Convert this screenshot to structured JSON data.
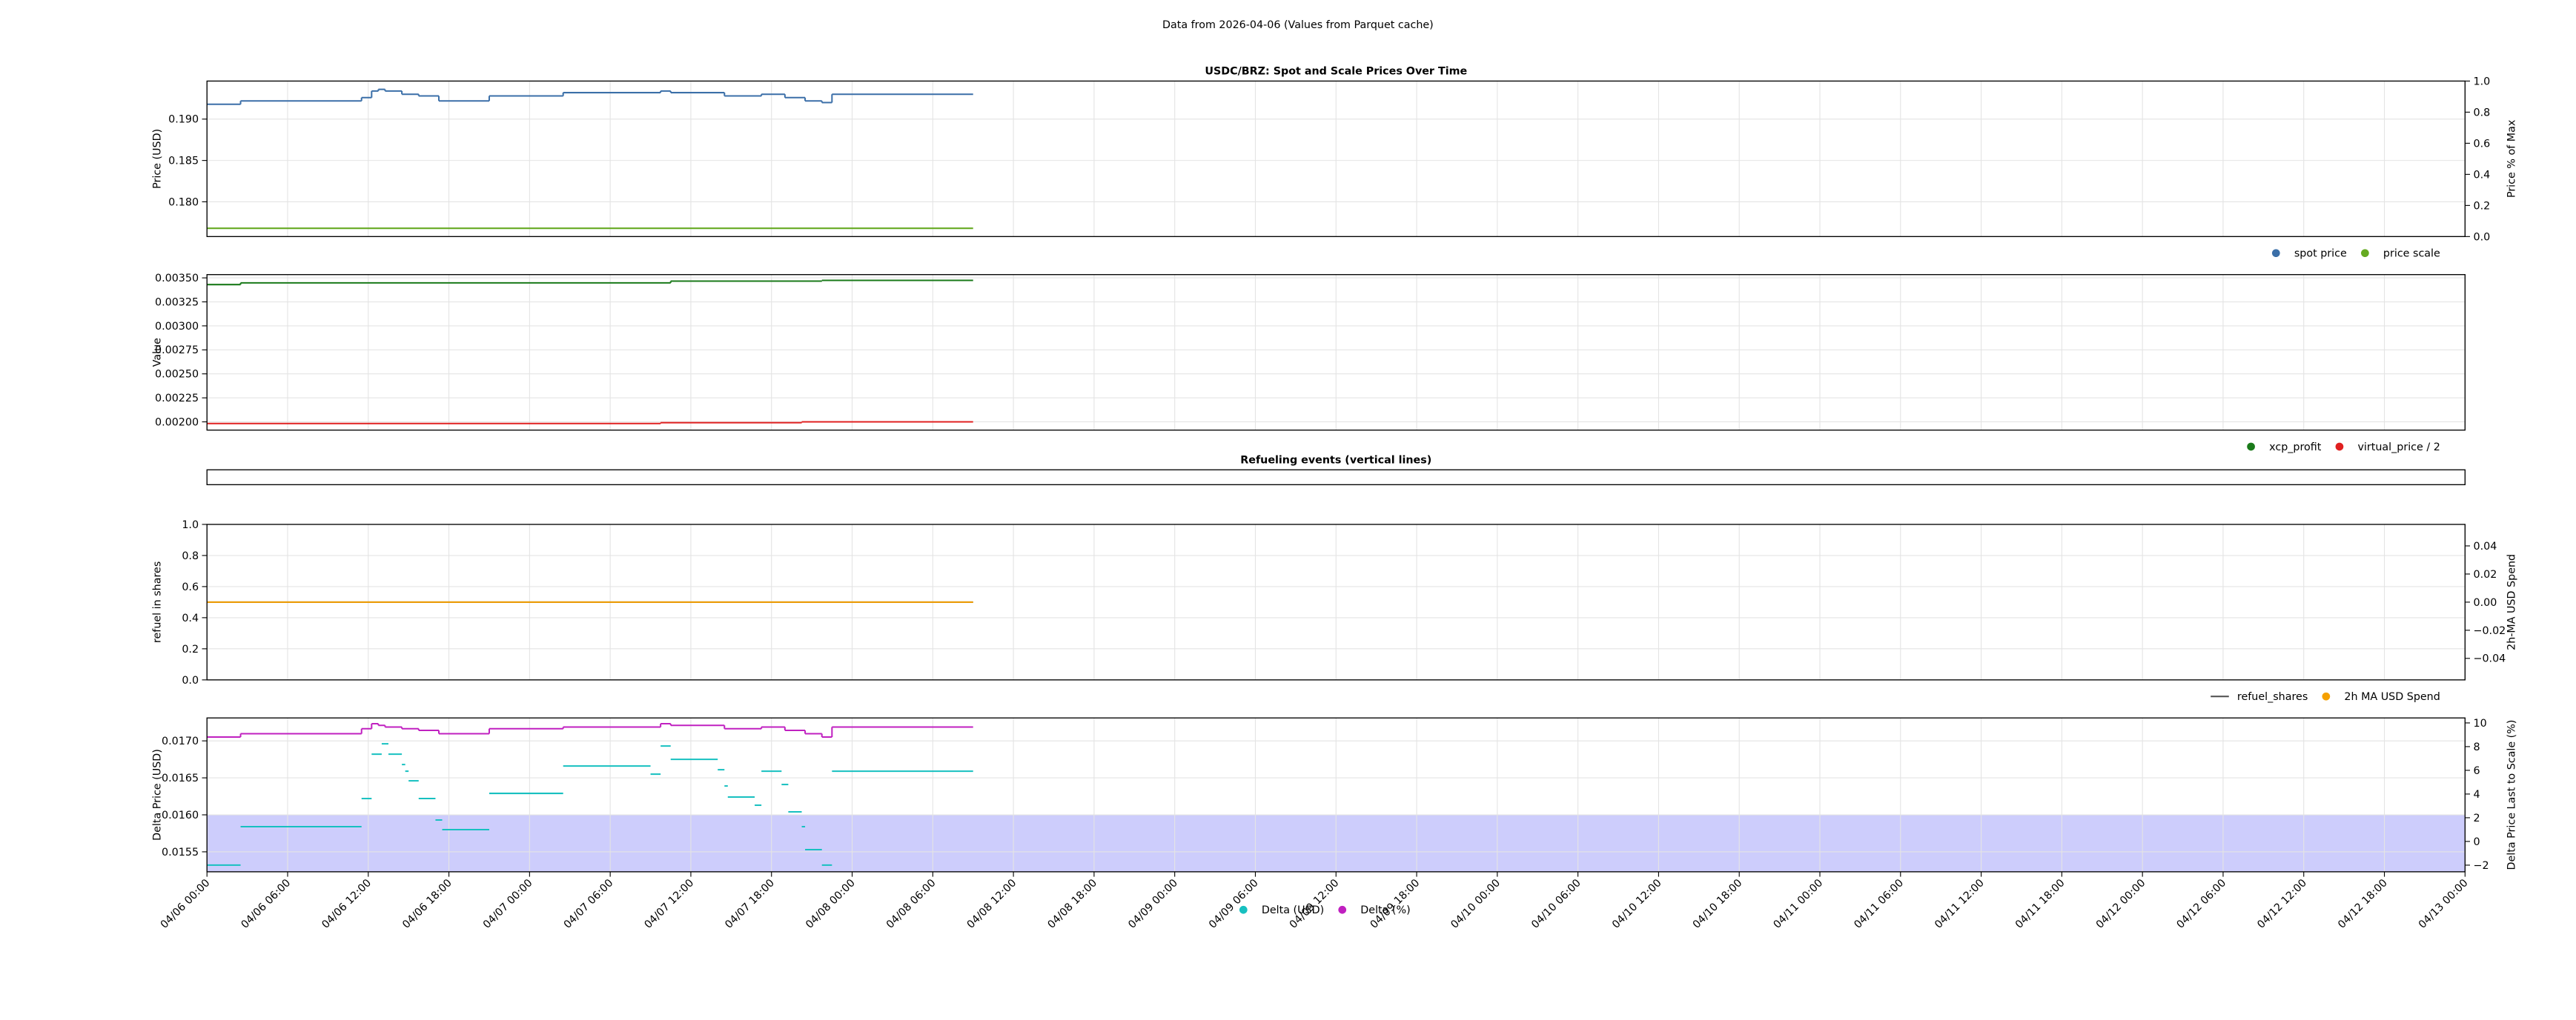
{
  "title": "Data from 2026-04-06 (Values from Parquet cache)",
  "chart_data": [
    {
      "type": "step",
      "title": "USDC/BRZ: Spot and Scale Prices Over Time",
      "ylabel": "Price (USD)",
      "y2label": "Price % of Max",
      "xlim": [
        "04/06 00:00",
        "04/13 00:00"
      ],
      "ylim": [
        0.1758,
        0.1946
      ],
      "yticks": [
        {
          "value": 0.18,
          "label": "0.180"
        },
        0.185,
        {
          "value": 0.19,
          "label": "0.190"
        }
      ],
      "y2lim": [
        0,
        1
      ],
      "y2ticks": [
        {
          "value": 0,
          "label": "0.0"
        },
        0.2,
        0.4,
        0.6,
        0.8,
        {
          "value": 1,
          "label": "1.0"
        }
      ],
      "grid": true,
      "legend": "below-right",
      "series": [
        {
          "name": "spot price",
          "color": "#3b6fa8",
          "marker": "dot",
          "style": "steps",
          "bins": [
            "04/06 00:00",
            "04/06 02:30",
            "04/06 11:30",
            "04/06 12:15",
            "04/06 12:45",
            "04/06 13:15",
            "04/06 14:30",
            "04/06 15:45",
            "04/06 17:15",
            "04/06 21:00",
            "04/07 02:30",
            "04/07 09:45",
            "04/07 10:30",
            "04/07 14:30",
            "04/07 17:15",
            "04/07 19:00",
            "04/07 20:30",
            "04/07 21:45",
            "04/07 22:30",
            "04/08 09:00"
          ],
          "values": [
            0.1918,
            0.1922,
            0.1926,
            0.1934,
            0.1936,
            0.1934,
            0.193,
            0.1928,
            0.1922,
            0.1928,
            0.1932,
            0.1934,
            0.1932,
            0.1928,
            0.193,
            0.1926,
            0.1922,
            0.192,
            0.193
          ]
        },
        {
          "name": "price scale",
          "color": "#66aa22",
          "marker": "dot",
          "style": "steps",
          "bins": [
            "04/06 00:00",
            "04/08 09:00"
          ],
          "values": [
            0.1768
          ]
        }
      ]
    },
    {
      "type": "step",
      "ylabel": "Value",
      "xlim": [
        "04/06 00:00",
        "04/13 00:00"
      ],
      "ylim": [
        0.001914,
        0.003534
      ],
      "yticks": [
        {
          "value": 0.002,
          "label": "0.00200"
        },
        {
          "value": 0.00225,
          "label": "0.00225"
        },
        {
          "value": 0.0025,
          "label": "0.00250"
        },
        {
          "value": 0.00275,
          "label": "0.00275"
        },
        {
          "value": 0.003,
          "label": "0.00300"
        },
        {
          "value": 0.00325,
          "label": "0.00325"
        },
        {
          "value": 0.0035,
          "label": "0.00350"
        }
      ],
      "grid": true,
      "legend": "below-right",
      "series": [
        {
          "name": "xcp_profit",
          "color": "#1a7a1a",
          "marker": "dot",
          "style": "steps",
          "bins": [
            "04/06 00:00",
            "04/06 02:30",
            "04/07 10:30",
            "04/07 21:45",
            "04/08 09:00"
          ],
          "values": [
            0.00343,
            0.003448,
            0.003466,
            0.003474
          ]
        },
        {
          "name": "virtual_price / 2",
          "color": "#e02020",
          "marker": "dot",
          "style": "steps",
          "bins": [
            "04/06 00:00",
            "04/07 09:45",
            "04/07 20:15",
            "04/08 09:00"
          ],
          "values": [
            0.001983,
            0.001991,
            0.002
          ]
        }
      ]
    },
    {
      "type": "events",
      "title": "Refueling events (vertical lines)",
      "xlim": [
        "04/06 00:00",
        "04/13 00:00"
      ]
    },
    {
      "type": "step",
      "ylabel": "refuel in shares",
      "y2label": "2h-MA USD Spend",
      "xlim": [
        "04/06 00:00",
        "04/13 00:00"
      ],
      "ylim": [
        0,
        1
      ],
      "yticks": [
        {
          "value": 0,
          "label": "0.0"
        },
        0.2,
        0.4,
        0.6,
        0.8,
        {
          "value": 1,
          "label": "1.0"
        }
      ],
      "y2lim": [
        -0.0553,
        0.0553
      ],
      "y2ticks": [
        {
          "value": -0.04,
          "label": "−0.04"
        },
        {
          "value": -0.02,
          "label": "−0.02"
        },
        {
          "value": 0,
          "label": "0.00"
        },
        0.02,
        0.04
      ],
      "y2color": "#f5a000",
      "grid": true,
      "legend": "below-right",
      "series": [
        {
          "name": "refuel_shares",
          "color": "#555555",
          "marker": "line",
          "style": "steps",
          "bins": [
            "04/06 00:00",
            "04/08 09:00"
          ],
          "values": [
            0.5
          ]
        },
        {
          "name": "2h MA USD Spend",
          "color": "#f5a000",
          "marker": "dot",
          "style": "steps",
          "axis": "y2",
          "bins": [
            "04/06 00:00",
            "04/08 09:00"
          ],
          "values": [
            0
          ]
        }
      ]
    },
    {
      "type": "step",
      "ylabel": "Delta Price (USD)",
      "y2label": "Delta Price Last to Scale (%)",
      "xlim": [
        "04/06 00:00",
        "04/13 00:00"
      ],
      "xticks": [
        "04/06 00:00",
        "04/06 06:00",
        "04/06 12:00",
        "04/06 18:00",
        "04/07 00:00",
        "04/07 06:00",
        "04/07 12:00",
        "04/07 18:00",
        "04/08 00:00",
        "04/08 06:00",
        "04/08 12:00",
        "04/08 18:00",
        "04/09 00:00",
        "04/09 06:00",
        "04/09 12:00",
        "04/09 18:00",
        "04/10 00:00",
        "04/10 06:00",
        "04/10 12:00",
        "04/10 18:00",
        "04/11 00:00",
        "04/11 06:00",
        "04/11 12:00",
        "04/11 18:00",
        "04/12 00:00",
        "04/12 06:00",
        "04/12 12:00",
        "04/12 18:00",
        "04/13 00:00"
      ],
      "ylim": [
        0.01523,
        0.01731
      ],
      "yticks": [
        0.0155,
        {
          "value": 0.016,
          "label": "0.0160"
        },
        0.0165,
        {
          "value": 0.017,
          "label": "0.0170"
        }
      ],
      "y2lim": [
        -2.56,
        10.42
      ],
      "y2ticks": [
        {
          "value": -2,
          "label": "−2"
        },
        0,
        2,
        4,
        6,
        8,
        10
      ],
      "ycolor": "#17b0b0",
      "y2color": "#c020c0",
      "span": {
        "from": 0.0152,
        "to": 0.016,
        "color": "#c8c8fc"
      },
      "grid": true,
      "legend": "below-center",
      "series": [
        {
          "name": "Delta (USD)",
          "color": "#17c0c0",
          "marker": "dot",
          "style": "segments",
          "bins": [
            "04/06 00:00",
            "04/06 02:30",
            "04/06 11:30",
            "04/06 12:15",
            "04/06 13:00",
            "04/06 13:30",
            "04/06 14:30",
            "04/06 14:45",
            "04/06 15:00",
            "04/06 15:45",
            "04/06 17:00",
            "04/06 17:30",
            "04/06 21:00",
            "04/07 02:30",
            "04/07 09:00",
            "04/07 09:45",
            "04/07 10:30",
            "04/07 14:00",
            "04/07 14:30",
            "04/07 14:45",
            "04/07 16:45",
            "04/07 17:15",
            "04/07 18:45",
            "04/07 19:15",
            "04/07 20:15",
            "04/07 20:30",
            "04/07 21:45",
            "04/07 22:30",
            "04/08 09:00"
          ],
          "values": [
            0.01532,
            0.01584,
            0.01622,
            0.01682,
            0.01696,
            0.01682,
            0.01668,
            0.01659,
            0.01646,
            0.01622,
            0.01593,
            0.0158,
            0.01629,
            0.01666,
            0.01655,
            0.01693,
            0.01675,
            0.01661,
            0.01639,
            0.01624,
            0.01613,
            0.01659,
            0.01641,
            0.01604,
            0.01584,
            0.01553,
            0.01532,
            0.01659
          ]
        },
        {
          "name": "Delta (%)",
          "color": "#c020c0",
          "marker": "dot",
          "style": "steps",
          "axis": "y2",
          "bins": [
            "04/06 00:00",
            "04/06 02:30",
            "04/06 11:30",
            "04/06 12:15",
            "04/06 12:45",
            "04/06 13:15",
            "04/06 14:30",
            "04/06 15:45",
            "04/06 17:15",
            "04/06 21:00",
            "04/07 02:30",
            "04/07 09:45",
            "04/07 10:30",
            "04/07 14:30",
            "04/07 17:15",
            "04/07 19:00",
            "04/07 20:30",
            "04/07 21:45",
            "04/07 22:30",
            "04/08 09:00"
          ],
          "values": [
            8.81,
            9.09,
            9.51,
            9.93,
            9.79,
            9.65,
            9.51,
            9.37,
            9.09,
            9.51,
            9.65,
            9.93,
            9.79,
            9.51,
            9.65,
            9.37,
            9.09,
            8.81,
            9.65
          ]
        }
      ]
    }
  ]
}
